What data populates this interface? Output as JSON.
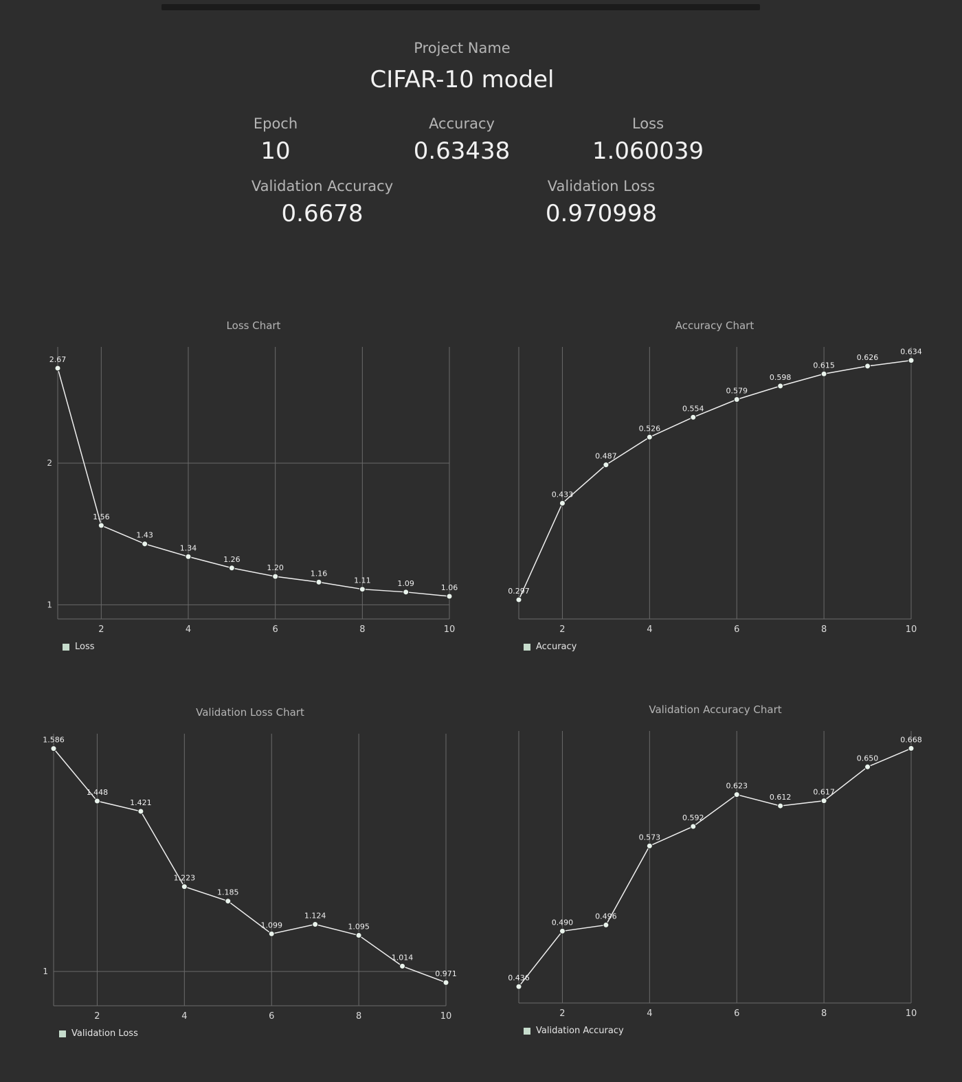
{
  "header": {
    "project_label": "Project Name",
    "project_name": "CIFAR-10 model"
  },
  "stats": {
    "epoch": {
      "label": "Epoch",
      "value": "10"
    },
    "accuracy": {
      "label": "Accuracy",
      "value": "0.63438"
    },
    "loss": {
      "label": "Loss",
      "value": "1.060039"
    },
    "val_accuracy": {
      "label": "Validation Accuracy",
      "value": "0.6678"
    },
    "val_loss": {
      "label": "Validation Loss",
      "value": "0.970998"
    }
  },
  "chart_data": [
    {
      "id": "loss",
      "type": "line",
      "title": "Loss Chart",
      "legend": "Loss",
      "legend_position": "bottom-left",
      "grid": true,
      "x": [
        1,
        2,
        3,
        4,
        5,
        6,
        7,
        8,
        9,
        10
      ],
      "x_ticks": [
        2,
        4,
        6,
        8,
        10
      ],
      "y_ticks": [
        1,
        2
      ],
      "ylim": [
        0.9,
        2.82
      ],
      "values": [
        2.67,
        1.56,
        1.43,
        1.34,
        1.26,
        1.2,
        1.16,
        1.11,
        1.09,
        1.06
      ],
      "labels": [
        "2.67",
        "1.56",
        "1.43",
        "1.34",
        "1.26",
        "1.20",
        "1.16",
        "1.11",
        "1.09",
        "1.06"
      ]
    },
    {
      "id": "accuracy",
      "type": "line",
      "title": "Accuracy Chart",
      "legend": "Accuracy",
      "legend_position": "bottom-left",
      "grid": true,
      "x": [
        1,
        2,
        3,
        4,
        5,
        6,
        7,
        8,
        9,
        10
      ],
      "x_ticks": [
        2,
        4,
        6,
        8,
        10
      ],
      "y_ticks": [],
      "ylim": [
        0.27,
        0.653
      ],
      "values": [
        0.297,
        0.433,
        0.487,
        0.526,
        0.554,
        0.579,
        0.598,
        0.615,
        0.626,
        0.634
      ],
      "labels": [
        "0.297",
        "0.433",
        "0.487",
        "0.526",
        "0.554",
        "0.579",
        "0.598",
        "0.615",
        "0.626",
        "0.634"
      ]
    },
    {
      "id": "val_loss",
      "type": "line",
      "title": "Validation Loss Chart",
      "legend": "Validation Loss",
      "legend_position": "bottom-left",
      "grid": true,
      "x": [
        1,
        2,
        3,
        4,
        5,
        6,
        7,
        8,
        9,
        10
      ],
      "x_ticks": [
        2,
        4,
        6,
        8,
        10
      ],
      "y_ticks": [
        1
      ],
      "ylim": [
        0.91,
        1.625
      ],
      "values": [
        1.586,
        1.448,
        1.421,
        1.223,
        1.185,
        1.099,
        1.124,
        1.095,
        1.014,
        0.971
      ],
      "labels": [
        "1.586",
        "1.448",
        "1.421",
        "1.223",
        "1.185",
        "1.099",
        "1.124",
        "1.095",
        "1.014",
        "0.971"
      ]
    },
    {
      "id": "val_accuracy",
      "type": "line",
      "title": "Validation Accuracy Chart",
      "legend": "Validation Accuracy",
      "legend_position": "bottom-left",
      "grid": true,
      "x": [
        1,
        2,
        3,
        4,
        5,
        6,
        7,
        8,
        9,
        10
      ],
      "x_ticks": [
        2,
        4,
        6,
        8,
        10
      ],
      "y_ticks": [],
      "ylim": [
        0.42,
        0.685
      ],
      "values": [
        0.436,
        0.49,
        0.496,
        0.573,
        0.592,
        0.623,
        0.612,
        0.617,
        0.65,
        0.668
      ],
      "labels": [
        "0.436",
        "0.490",
        "0.496",
        "0.573",
        "0.592",
        "0.623",
        "0.612",
        "0.617",
        "0.650",
        "0.668"
      ]
    }
  ]
}
